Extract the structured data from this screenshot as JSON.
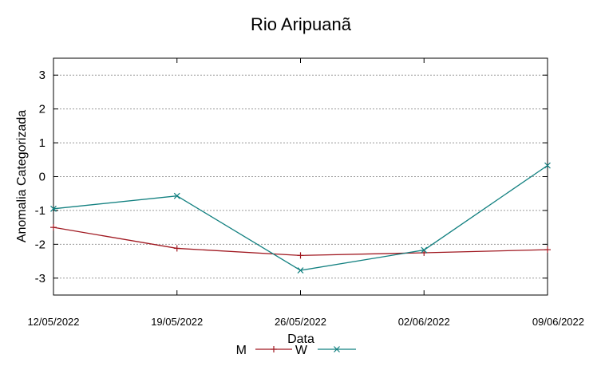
{
  "chart_data": {
    "type": "line",
    "title": "Rio Aripuanã",
    "xlabel": "Data",
    "ylabel": "Anomalia Categorizada",
    "categories": [
      "12/05/2022",
      "19/05/2022",
      "26/05/2022",
      "02/06/2022",
      "09/06/2022"
    ],
    "yticks": [
      "3",
      "2",
      "1",
      "0",
      "-1",
      "-2",
      "-3"
    ],
    "ylim": [
      -3.5,
      3.5
    ],
    "grid": "horizontal dashed",
    "legend_position": "bottom",
    "series": [
      {
        "name": "M",
        "color": "#a01820",
        "marker": "plus",
        "values": [
          -1.5,
          -2.12,
          -2.33,
          -2.25,
          -2.16
        ]
      },
      {
        "name": "W",
        "color": "#128080",
        "marker": "cross",
        "values": [
          -0.95,
          -0.57,
          -2.77,
          -2.17,
          0.33
        ]
      }
    ]
  }
}
